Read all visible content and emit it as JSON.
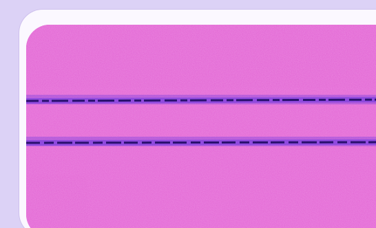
{
  "colors": {
    "background": "#dcd2f6",
    "frame": "#fbf8ff",
    "card_fill": "#e463d3",
    "card_speckle_light": "#f48ae4",
    "card_speckle_dark": "#c944c0",
    "line": "#2a0f6e",
    "line_glow": "#6b38e0"
  },
  "content": {
    "text": []
  }
}
